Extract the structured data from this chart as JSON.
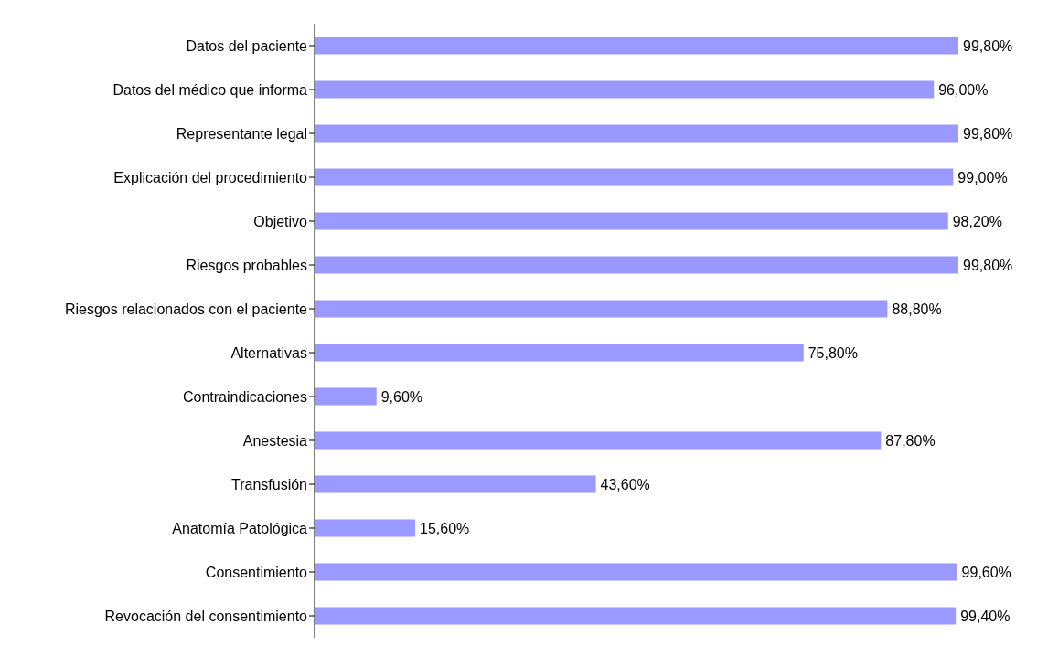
{
  "chart_data": {
    "type": "bar",
    "orientation": "horizontal",
    "categories": [
      "Datos del paciente",
      "Datos del médico que informa",
      "Representante legal",
      "Explicación del procedimiento",
      "Objetivo",
      "Riesgos probables",
      "Riesgos relacionados con el paciente",
      "Alternativas",
      "Contraindicaciones",
      "Anestesia",
      "Transfusión",
      "Anatomía Patológica",
      "Consentimiento",
      "Revocación del consentimiento"
    ],
    "values": [
      99.8,
      96.0,
      99.8,
      99.0,
      98.2,
      99.8,
      88.8,
      75.8,
      9.6,
      87.8,
      43.6,
      15.6,
      99.6,
      99.4
    ],
    "value_labels": [
      "99,80%",
      "96,00%",
      "99,80%",
      "99,00%",
      "98,20%",
      "99,80%",
      "88,80%",
      "75,80%",
      "9,60%",
      "87,80%",
      "43,60%",
      "15,60%",
      "99,60%",
      "99,40%"
    ],
    "color": "#9999ff",
    "grid": false,
    "legend": false
  }
}
